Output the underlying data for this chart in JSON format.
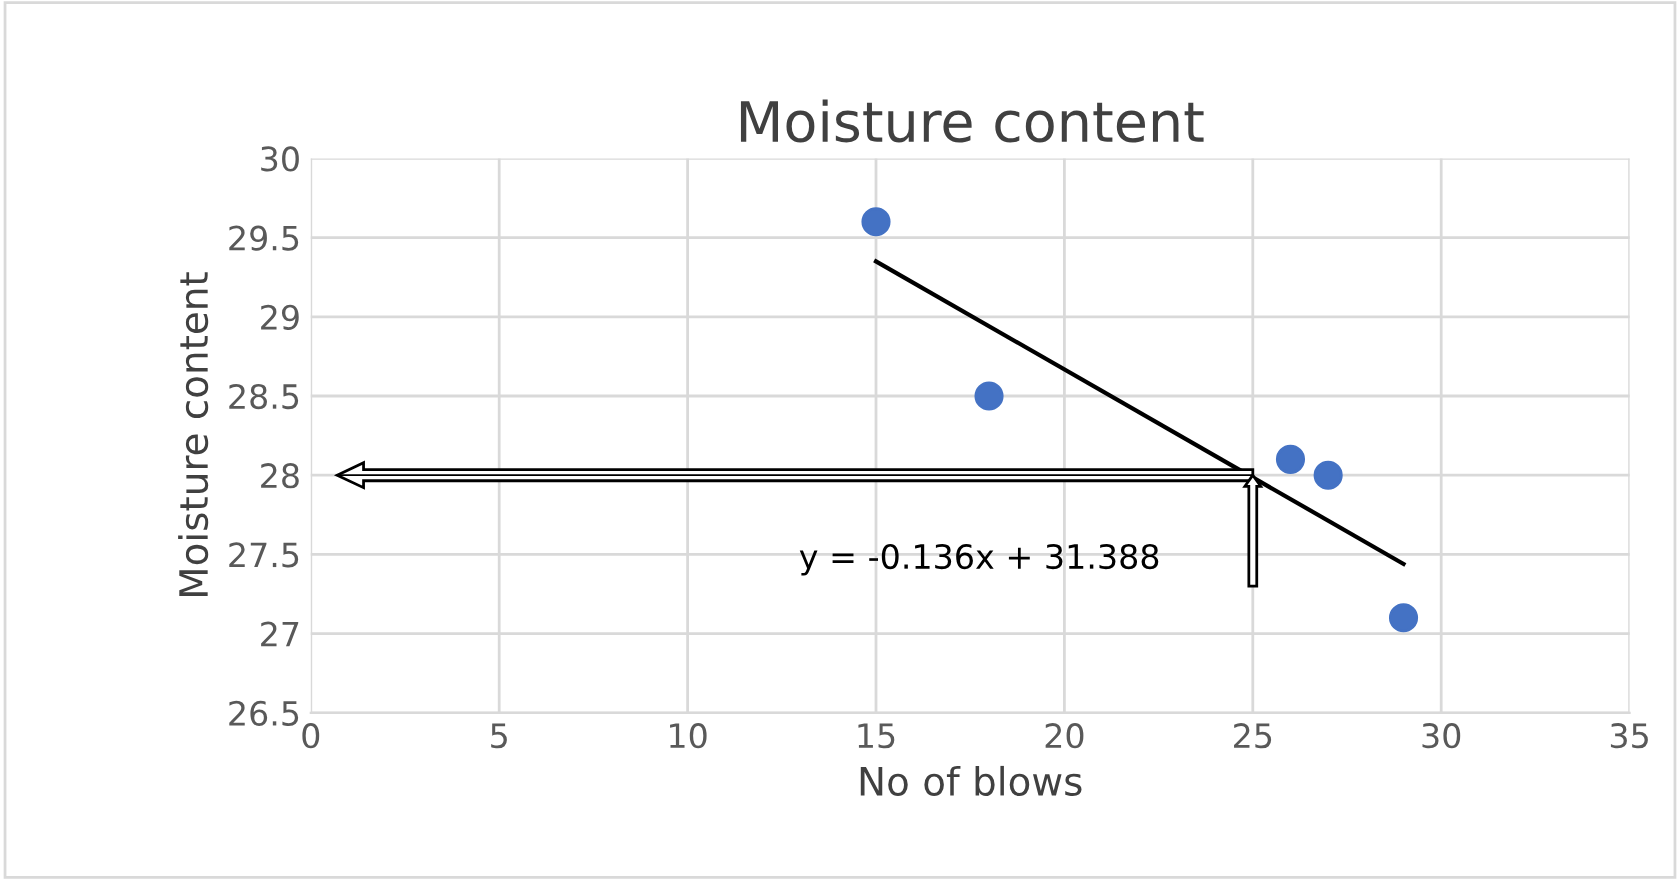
{
  "chart_data": {
    "type": "scatter",
    "title": "Moisture content",
    "xlabel": "No of blows",
    "ylabel": "Moisture content",
    "series": [
      {
        "color": "#4472c4",
        "x": [
          15,
          18,
          26,
          27,
          29
        ],
        "values": [
          29.6,
          28.5,
          28.1,
          28.0,
          27.1
        ],
        "marker": "circle"
      },
      {
        "type": "line",
        "color": "#000000",
        "x": [
          15,
          29
        ],
        "values": [
          29.35,
          27.44
        ],
        "marker": "none"
      }
    ],
    "annotations": [
      "y = -0.136x + 31.388"
    ],
    "ref_lines": [
      {
        "axis": "y",
        "value": 28
      },
      {
        "axis": "x",
        "value": 25
      }
    ],
    "xlim": [
      0,
      35
    ],
    "xticks": [
      0,
      5,
      10,
      15,
      20,
      25,
      30,
      35
    ],
    "ylim": [
      26.5,
      30
    ],
    "yticks": [
      26.5,
      27,
      27.5,
      28,
      28.5,
      29,
      29.5,
      30
    ],
    "grid": true
  }
}
